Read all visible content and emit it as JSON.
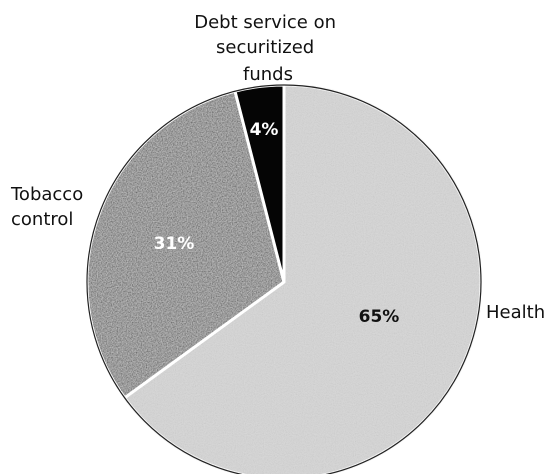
{
  "chart_data": {
    "type": "pie",
    "slices": [
      {
        "label": "Health",
        "value": 65,
        "value_label": "65%",
        "fill": "#d7d7d7"
      },
      {
        "label": "Tobacco control",
        "value": 31,
        "value_label": "31%",
        "fill": "#3c3c3c"
      },
      {
        "label": "Debt service on securitized funds",
        "value": 4,
        "value_label": "4%",
        "fill": "#050505"
      }
    ],
    "start_angle_deg": 0,
    "direction": "clockwise",
    "legend": "none",
    "labels": {
      "health": [
        "Health"
      ],
      "tobacco": [
        "Tobacco",
        "control"
      ],
      "debt": [
        "Debt service on",
        "securitized",
        "funds"
      ]
    }
  }
}
